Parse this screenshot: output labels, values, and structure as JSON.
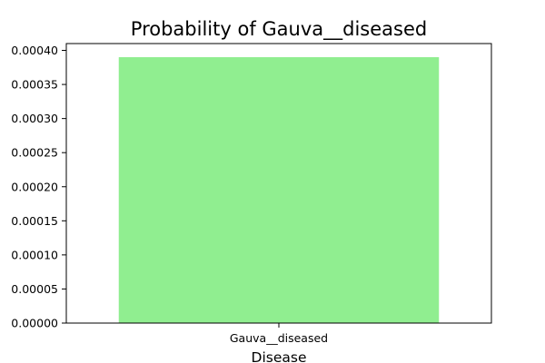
{
  "chart_data": {
    "type": "bar",
    "title": "Probability of Gauva__diseased",
    "xlabel": "Disease",
    "ylabel": "",
    "categories": [
      "Gauva__diseased"
    ],
    "values": [
      0.00039
    ],
    "ylim": [
      0,
      0.00041
    ],
    "yticks": [
      "0.00000",
      "0.00005",
      "0.00010",
      "0.00015",
      "0.00020",
      "0.00025",
      "0.00030",
      "0.00035",
      "0.00040"
    ],
    "bar_color": "#90ee90",
    "grid": false,
    "legend": "none"
  }
}
